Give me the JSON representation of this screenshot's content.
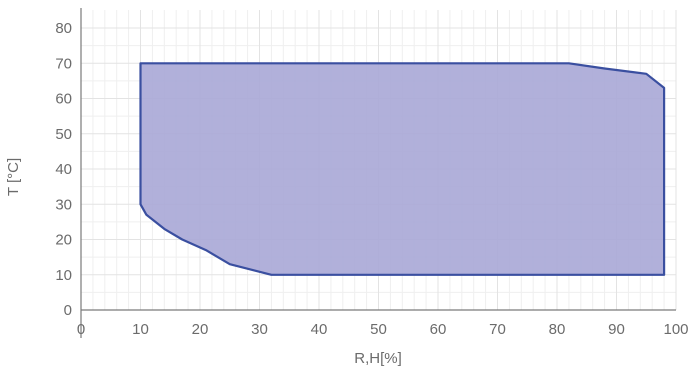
{
  "chart_data": {
    "type": "area",
    "title": "",
    "xlabel": "R,H[%]",
    "ylabel": "T [°C]",
    "xlim": [
      0,
      100
    ],
    "ylim": [
      0,
      80
    ],
    "xticks": [
      0,
      10,
      20,
      30,
      40,
      50,
      60,
      70,
      80,
      90,
      100
    ],
    "yticks": [
      0,
      10,
      20,
      30,
      40,
      50,
      60,
      70,
      80
    ],
    "grid": true,
    "legend": "none",
    "colors": {
      "fill": "#a9a7d6",
      "stroke": "#3a4fa0",
      "grid": "#e3e3e3",
      "axis": "#7a7a7a",
      "text": "#6b6b6b"
    },
    "series": [
      {
        "values": [
          [
            10,
            70
          ],
          [
            82,
            70
          ],
          [
            88,
            68.5
          ],
          [
            95,
            67
          ],
          [
            98,
            63
          ],
          [
            98,
            10
          ],
          [
            32,
            10
          ],
          [
            25,
            13
          ],
          [
            21,
            17
          ],
          [
            17,
            20
          ],
          [
            14,
            23
          ],
          [
            11,
            27
          ],
          [
            10,
            30
          ],
          [
            10,
            70
          ]
        ]
      }
    ]
  }
}
